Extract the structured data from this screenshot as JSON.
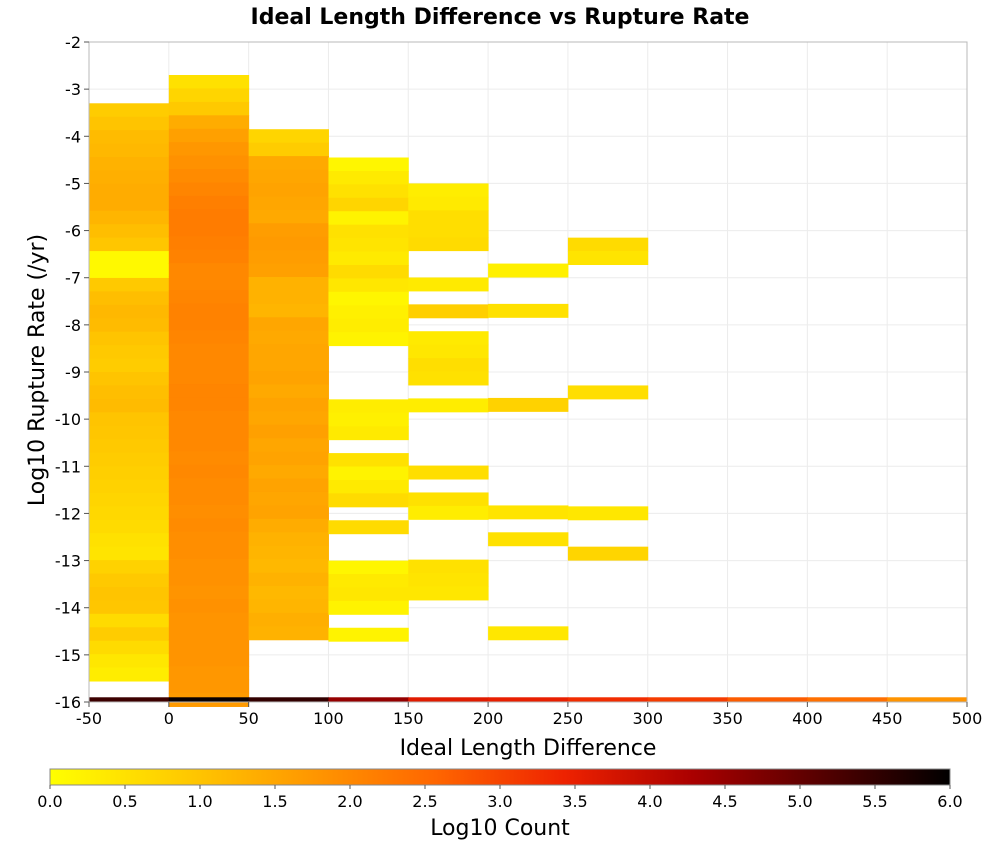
{
  "chart_data": {
    "type": "heatmap",
    "title": "Ideal Length Difference vs Rupture Rate",
    "xlabel": "Ideal Length Difference",
    "ylabel": "Log10 Rupture Rate (/yr)",
    "xlim": [
      -50,
      500
    ],
    "ylim": [
      -16,
      -2
    ],
    "x_ticks": [
      "-50",
      "0",
      "50",
      "100",
      "150",
      "200",
      "250",
      "300",
      "350",
      "400",
      "450",
      "500"
    ],
    "y_ticks": [
      "-2",
      "-3",
      "-4",
      "-5",
      "-6",
      "-7",
      "-8",
      "-9",
      "-10",
      "-11",
      "-12",
      "-13",
      "-14",
      "-15",
      "-16"
    ],
    "bin_width_x": 50,
    "bin_height_y": 0.285,
    "grid": true,
    "colorbar": {
      "label": "Log10 Count",
      "range": [
        0.0,
        6.0
      ],
      "ticks": [
        "0.0",
        "0.5",
        "1.0",
        "1.5",
        "2.0",
        "2.5",
        "3.0",
        "3.5",
        "4.0",
        "4.5",
        "5.0",
        "5.5",
        "6.0"
      ],
      "colors": [
        "#ffff00",
        "#ffcc00",
        "#ff9900",
        "#ff6600",
        "#ee2200",
        "#aa0000",
        "#550000",
        "#000000"
      ]
    },
    "columns": [
      {
        "x": -25,
        "y_start": -3.3,
        "values": [
          0.85,
          1.0,
          1.15,
          1.2,
          1.3,
          1.35,
          1.4,
          1.4,
          1.25,
          1.1,
          0.95,
          0.1,
          0.1,
          0.9,
          1.1,
          1.2,
          1.15,
          1.0,
          0.9,
          0.85,
          1.0,
          1.1,
          1.15,
          1.0,
          0.95,
          0.9,
          0.85,
          0.8,
          0.75,
          0.7,
          0.65,
          0.6,
          0.5,
          0.45,
          0.75,
          0.9,
          1.0,
          0.95,
          0.6,
          0.85,
          0.6,
          0.4,
          0.3
        ]
      },
      {
        "x": 25,
        "y_start": -2.7,
        "values": [
          0.5,
          0.7,
          0.9,
          1.4,
          1.6,
          1.75,
          1.85,
          1.95,
          2.05,
          2.15,
          2.2,
          2.2,
          2.15,
          2.1,
          2.0,
          2.0,
          2.05,
          2.1,
          2.1,
          2.05,
          2.0,
          2.0,
          2.0,
          2.05,
          2.05,
          2.0,
          2.0,
          2.0,
          1.95,
          2.0,
          1.95,
          1.95,
          1.9,
          1.95,
          1.9,
          1.9,
          1.85,
          1.85,
          1.8,
          1.85,
          1.8,
          1.8,
          1.8,
          1.8,
          1.75,
          1.75,
          1.7
        ]
      },
      {
        "x": 75,
        "y_start": -3.85,
        "values": [
          0.7,
          0.85,
          1.45,
          1.5,
          1.55,
          1.5,
          1.45,
          1.65,
          1.7,
          1.65,
          1.6,
          1.3,
          1.3,
          1.25,
          1.5,
          1.45,
          1.5,
          1.5,
          1.55,
          1.45,
          1.55,
          1.5,
          1.6,
          1.5,
          1.55,
          1.45,
          1.55,
          1.5,
          1.55,
          1.4,
          1.3,
          1.25,
          1.2,
          1.3,
          1.2,
          1.25,
          1.35,
          1.3
        ]
      },
      {
        "x": 125,
        "y_start": -4.45,
        "values": [
          0.15,
          0.35,
          0.5,
          0.7,
          0.2,
          0.5,
          0.45,
          0.35,
          0.6,
          0.4,
          0.15,
          0.25,
          0.3,
          0.2,
          null,
          null,
          null,
          null,
          0.3,
          0.25,
          0.35,
          null,
          0.5,
          0.2,
          0.35,
          0.6,
          null,
          0.6,
          null,
          null,
          0.15,
          0.35,
          0.4,
          0.2,
          null,
          0.2
        ]
      },
      {
        "x": 175,
        "y_start": -5.0,
        "values": [
          0.3,
          0.35,
          0.55,
          0.55,
          0.6,
          null,
          null,
          0.35,
          null,
          0.8,
          null,
          0.35,
          0.4,
          0.55,
          0.5,
          null,
          0.3,
          null,
          null,
          null,
          null,
          0.55,
          null,
          0.5,
          0.3,
          null,
          null,
          null,
          0.5,
          0.45,
          0.4
        ]
      },
      {
        "x": 225,
        "y_start": -6.7,
        "values": [
          0.25,
          null,
          null,
          0.5,
          null,
          null,
          null,
          null,
          null,
          null,
          0.75,
          null,
          null,
          null,
          null,
          null,
          null,
          null,
          0.45,
          null,
          0.5,
          null,
          null,
          null,
          null,
          null,
          null,
          0.4
        ]
      },
      {
        "x": 275,
        "y_start": -6.15,
        "values": [
          0.6,
          0.45,
          null,
          null,
          null,
          null,
          null,
          null,
          null,
          null,
          null,
          0.55,
          null,
          null,
          null,
          null,
          null,
          null,
          null,
          null,
          0.4,
          null,
          null,
          0.7
        ]
      }
    ],
    "bottom_row": {
      "y": -15.9,
      "values": [
        5.4,
        5.9,
        5.5,
        4.5,
        3.6,
        3.5,
        3.3,
        3.1,
        2.7,
        2.4,
        1.8
      ]
    }
  }
}
